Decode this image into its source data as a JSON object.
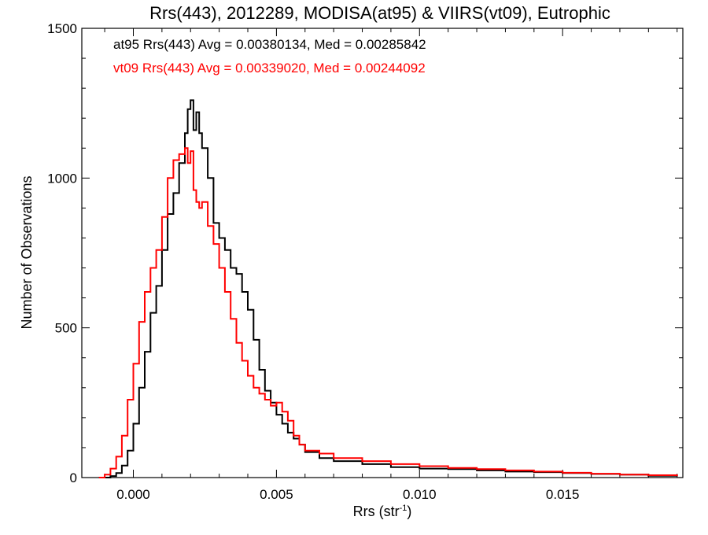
{
  "chart_data": {
    "type": "line",
    "title": "Rrs(443), 2012289, MODISA(at95) & VIIRS(vt09), Eutrophic",
    "xlabel": "Rrs (str",
    "xlabel_sup": "-1",
    "xlabel_close": ")",
    "ylabel": "Number of Observations",
    "xlim": [
      -0.0018,
      0.0192
    ],
    "ylim": [
      0,
      1500
    ],
    "xticks": [
      0.0,
      0.005,
      0.01,
      0.015
    ],
    "xtick_labels": [
      "0.000",
      "0.005",
      "0.010",
      "0.015"
    ],
    "yticks": [
      0,
      500,
      1000,
      1500
    ],
    "ytick_labels": [
      "0",
      "500",
      "1000",
      "1500"
    ],
    "grid": false,
    "legend": "top-left",
    "series": [
      {
        "name": "at95",
        "color": "#000000",
        "annotation": "at95 Rrs(443) Avg = 0.00380134, Med = 0.00285842",
        "x": [
          -0.0012,
          -0.0008,
          -0.0006,
          -0.0004,
          -0.0002,
          0.0,
          0.0002,
          0.0004,
          0.0006,
          0.0008,
          0.001,
          0.0012,
          0.0014,
          0.0016,
          0.0018,
          0.0019,
          0.002,
          0.0021,
          0.0022,
          0.0023,
          0.0024,
          0.0026,
          0.0028,
          0.003,
          0.0032,
          0.0034,
          0.0036,
          0.0038,
          0.004,
          0.0042,
          0.0044,
          0.0046,
          0.0048,
          0.005,
          0.0052,
          0.0054,
          0.0056,
          0.0058,
          0.006,
          0.0065,
          0.007,
          0.008,
          0.009,
          0.01,
          0.011,
          0.012,
          0.013,
          0.014,
          0.015,
          0.016,
          0.017,
          0.018,
          0.019
        ],
        "y": [
          0,
          5,
          15,
          40,
          90,
          180,
          300,
          420,
          550,
          640,
          760,
          880,
          950,
          1050,
          1150,
          1230,
          1260,
          1160,
          1220,
          1150,
          1100,
          1000,
          850,
          800,
          760,
          700,
          680,
          620,
          560,
          460,
          360,
          290,
          250,
          210,
          180,
          150,
          130,
          110,
          85,
          65,
          55,
          45,
          35,
          30,
          28,
          24,
          20,
          18,
          15,
          12,
          10,
          6,
          4
        ]
      },
      {
        "name": "vt09",
        "color": "#ff0000",
        "annotation": "vt09 Rrs(443) Avg = 0.00339020, Med = 0.00244092",
        "x": [
          -0.0012,
          -0.001,
          -0.0008,
          -0.0006,
          -0.0004,
          -0.0002,
          0.0,
          0.0002,
          0.0004,
          0.0006,
          0.0008,
          0.001,
          0.0012,
          0.0014,
          0.0016,
          0.0018,
          0.0019,
          0.002,
          0.0021,
          0.0022,
          0.0023,
          0.0024,
          0.0026,
          0.0028,
          0.003,
          0.0032,
          0.0034,
          0.0036,
          0.0038,
          0.004,
          0.0042,
          0.0044,
          0.0046,
          0.0048,
          0.005,
          0.0052,
          0.0054,
          0.0056,
          0.0058,
          0.006,
          0.0065,
          0.007,
          0.008,
          0.009,
          0.01,
          0.011,
          0.012,
          0.013,
          0.014,
          0.015,
          0.016,
          0.017,
          0.018,
          0.019
        ],
        "y": [
          0,
          10,
          30,
          70,
          140,
          260,
          380,
          520,
          620,
          700,
          760,
          870,
          1000,
          1060,
          1080,
          1100,
          1050,
          1090,
          960,
          920,
          900,
          920,
          840,
          780,
          700,
          620,
          530,
          450,
          390,
          340,
          300,
          280,
          260,
          240,
          250,
          220,
          190,
          140,
          110,
          90,
          80,
          65,
          55,
          45,
          38,
          32,
          28,
          24,
          20,
          16,
          13,
          10,
          8,
          5
        ]
      }
    ]
  }
}
